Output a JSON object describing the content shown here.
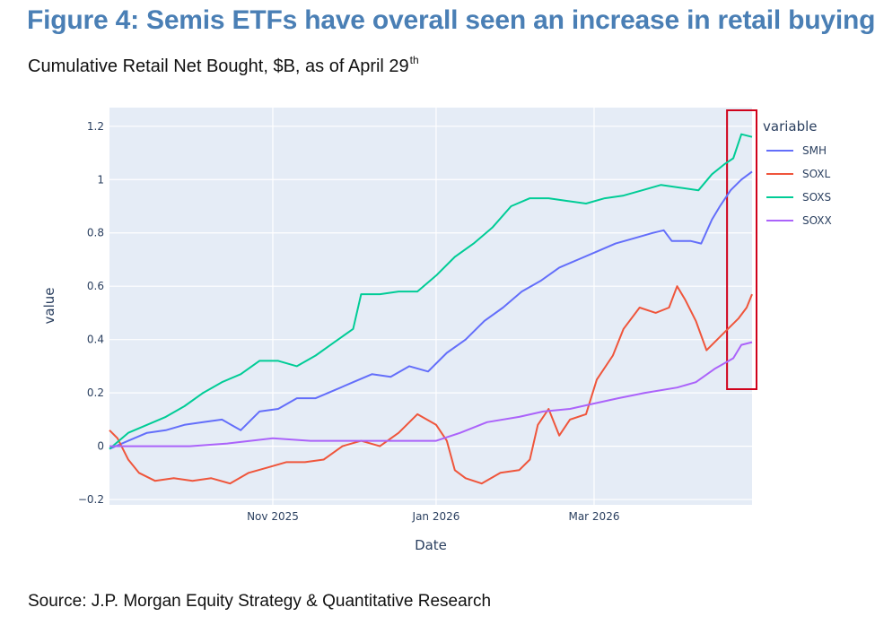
{
  "figure": {
    "title": "Figure 4: Semis ETFs have overall seen an increase in retail buying",
    "subtitle": "Cumulative Retail Net Bought, $B, as of April 29",
    "subtitle_sup": "th",
    "source": "Source: J.P. Morgan Equity Strategy & Quantitative Research"
  },
  "chart_data": {
    "type": "line",
    "xlabel": "Date",
    "ylabel": "value",
    "legend_title": "variable",
    "legend_position": "right",
    "grid": true,
    "x_range": [
      "2025-09-01",
      "2026-04-29"
    ],
    "ylim": [
      -0.22,
      1.27
    ],
    "x_ticks": [
      {
        "date": "2025-11-01",
        "label": "Nov 2025"
      },
      {
        "date": "2026-01-01",
        "label": "Jan 2026"
      },
      {
        "date": "2026-03-01",
        "label": "Mar 2026"
      }
    ],
    "y_ticks": [
      {
        "value": 1.2,
        "label": "1.2"
      },
      {
        "value": 1.0,
        "label": "1"
      },
      {
        "value": 0.8,
        "label": "0.8"
      },
      {
        "value": 0.6,
        "label": "0.6"
      },
      {
        "value": 0.4,
        "label": "0.4"
      },
      {
        "value": 0.2,
        "label": "0.2"
      },
      {
        "value": 0.0,
        "label": "0"
      },
      {
        "value": -0.2,
        "label": "−0.2"
      }
    ],
    "series": [
      {
        "name": "SMH",
        "color": "#636efa",
        "points": [
          [
            "2025-09-01",
            -0.01
          ],
          [
            "2025-09-08",
            0.02
          ],
          [
            "2025-09-15",
            0.05
          ],
          [
            "2025-09-22",
            0.06
          ],
          [
            "2025-09-29",
            0.08
          ],
          [
            "2025-10-06",
            0.09
          ],
          [
            "2025-10-13",
            0.1
          ],
          [
            "2025-10-20",
            0.06
          ],
          [
            "2025-10-27",
            0.13
          ],
          [
            "2025-11-03",
            0.14
          ],
          [
            "2025-11-10",
            0.18
          ],
          [
            "2025-11-17",
            0.18
          ],
          [
            "2025-11-24",
            0.21
          ],
          [
            "2025-12-01",
            0.24
          ],
          [
            "2025-12-08",
            0.27
          ],
          [
            "2025-12-15",
            0.26
          ],
          [
            "2025-12-22",
            0.3
          ],
          [
            "2025-12-29",
            0.28
          ],
          [
            "2026-01-05",
            0.35
          ],
          [
            "2026-01-12",
            0.4
          ],
          [
            "2026-01-19",
            0.47
          ],
          [
            "2026-01-26",
            0.52
          ],
          [
            "2026-02-02",
            0.58
          ],
          [
            "2026-02-09",
            0.62
          ],
          [
            "2026-02-16",
            0.67
          ],
          [
            "2026-02-23",
            0.7
          ],
          [
            "2026-03-02",
            0.73
          ],
          [
            "2026-03-09",
            0.76
          ],
          [
            "2026-03-16",
            0.78
          ],
          [
            "2026-03-23",
            0.8
          ],
          [
            "2026-03-27",
            0.81
          ],
          [
            "2026-03-30",
            0.77
          ],
          [
            "2026-04-06",
            0.77
          ],
          [
            "2026-04-10",
            0.76
          ],
          [
            "2026-04-14",
            0.85
          ],
          [
            "2026-04-17",
            0.9
          ],
          [
            "2026-04-21",
            0.96
          ],
          [
            "2026-04-25",
            1.0
          ],
          [
            "2026-04-29",
            1.03
          ]
        ]
      },
      {
        "name": "SOXL",
        "color": "#ef553b",
        "points": [
          [
            "2025-09-01",
            0.06
          ],
          [
            "2025-09-04",
            0.03
          ],
          [
            "2025-09-08",
            -0.05
          ],
          [
            "2025-09-12",
            -0.1
          ],
          [
            "2025-09-18",
            -0.13
          ],
          [
            "2025-09-25",
            -0.12
          ],
          [
            "2025-10-02",
            -0.13
          ],
          [
            "2025-10-09",
            -0.12
          ],
          [
            "2025-10-16",
            -0.14
          ],
          [
            "2025-10-23",
            -0.1
          ],
          [
            "2025-10-30",
            -0.08
          ],
          [
            "2025-11-06",
            -0.06
          ],
          [
            "2025-11-13",
            -0.06
          ],
          [
            "2025-11-20",
            -0.05
          ],
          [
            "2025-11-27",
            0.0
          ],
          [
            "2025-12-04",
            0.02
          ],
          [
            "2025-12-11",
            0.0
          ],
          [
            "2025-12-18",
            0.05
          ],
          [
            "2025-12-25",
            0.12
          ],
          [
            "2026-01-01",
            0.08
          ],
          [
            "2026-01-05",
            0.02
          ],
          [
            "2026-01-08",
            -0.09
          ],
          [
            "2026-01-12",
            -0.12
          ],
          [
            "2026-01-18",
            -0.14
          ],
          [
            "2026-01-25",
            -0.1
          ],
          [
            "2026-02-01",
            -0.09
          ],
          [
            "2026-02-05",
            -0.05
          ],
          [
            "2026-02-08",
            0.08
          ],
          [
            "2026-02-12",
            0.14
          ],
          [
            "2026-02-16",
            0.04
          ],
          [
            "2026-02-20",
            0.1
          ],
          [
            "2026-02-26",
            0.12
          ],
          [
            "2026-03-02",
            0.25
          ],
          [
            "2026-03-08",
            0.34
          ],
          [
            "2026-03-12",
            0.44
          ],
          [
            "2026-03-18",
            0.52
          ],
          [
            "2026-03-24",
            0.5
          ],
          [
            "2026-03-29",
            0.52
          ],
          [
            "2026-04-01",
            0.6
          ],
          [
            "2026-04-04",
            0.55
          ],
          [
            "2026-04-08",
            0.47
          ],
          [
            "2026-04-12",
            0.36
          ],
          [
            "2026-04-16",
            0.4
          ],
          [
            "2026-04-20",
            0.44
          ],
          [
            "2026-04-24",
            0.48
          ],
          [
            "2026-04-27",
            0.52
          ],
          [
            "2026-04-29",
            0.57
          ]
        ]
      },
      {
        "name": "SOXS",
        "color": "#00cc96",
        "points": [
          [
            "2025-09-01",
            -0.01
          ],
          [
            "2025-09-08",
            0.05
          ],
          [
            "2025-09-15",
            0.08
          ],
          [
            "2025-09-22",
            0.11
          ],
          [
            "2025-09-29",
            0.15
          ],
          [
            "2025-10-06",
            0.2
          ],
          [
            "2025-10-13",
            0.24
          ],
          [
            "2025-10-20",
            0.27
          ],
          [
            "2025-10-27",
            0.32
          ],
          [
            "2025-11-03",
            0.32
          ],
          [
            "2025-11-10",
            0.3
          ],
          [
            "2025-11-17",
            0.34
          ],
          [
            "2025-11-24",
            0.39
          ],
          [
            "2025-12-01",
            0.44
          ],
          [
            "2025-12-04",
            0.57
          ],
          [
            "2025-12-11",
            0.57
          ],
          [
            "2025-12-18",
            0.58
          ],
          [
            "2025-12-25",
            0.58
          ],
          [
            "2026-01-01",
            0.64
          ],
          [
            "2026-01-08",
            0.71
          ],
          [
            "2026-01-15",
            0.76
          ],
          [
            "2026-01-22",
            0.82
          ],
          [
            "2026-01-29",
            0.9
          ],
          [
            "2026-02-05",
            0.93
          ],
          [
            "2026-02-12",
            0.93
          ],
          [
            "2026-02-19",
            0.92
          ],
          [
            "2026-02-26",
            0.91
          ],
          [
            "2026-03-05",
            0.93
          ],
          [
            "2026-03-12",
            0.94
          ],
          [
            "2026-03-19",
            0.96
          ],
          [
            "2026-03-26",
            0.98
          ],
          [
            "2026-04-02",
            0.97
          ],
          [
            "2026-04-09",
            0.96
          ],
          [
            "2026-04-14",
            1.02
          ],
          [
            "2026-04-19",
            1.06
          ],
          [
            "2026-04-22",
            1.08
          ],
          [
            "2026-04-25",
            1.17
          ],
          [
            "2026-04-29",
            1.16
          ]
        ]
      },
      {
        "name": "SOXX",
        "color": "#ab63fa",
        "points": [
          [
            "2025-09-01",
            0.0
          ],
          [
            "2025-09-15",
            0.0
          ],
          [
            "2025-10-01",
            0.0
          ],
          [
            "2025-10-15",
            0.01
          ],
          [
            "2025-11-01",
            0.03
          ],
          [
            "2025-11-15",
            0.02
          ],
          [
            "2025-12-01",
            0.02
          ],
          [
            "2025-12-15",
            0.02
          ],
          [
            "2026-01-01",
            0.02
          ],
          [
            "2026-01-10",
            0.05
          ],
          [
            "2026-01-20",
            0.09
          ],
          [
            "2026-02-01",
            0.11
          ],
          [
            "2026-02-10",
            0.13
          ],
          [
            "2026-02-20",
            0.14
          ],
          [
            "2026-03-01",
            0.16
          ],
          [
            "2026-03-10",
            0.18
          ],
          [
            "2026-03-20",
            0.2
          ],
          [
            "2026-04-01",
            0.22
          ],
          [
            "2026-04-08",
            0.24
          ],
          [
            "2026-04-15",
            0.29
          ],
          [
            "2026-04-22",
            0.33
          ],
          [
            "2026-04-25",
            0.38
          ],
          [
            "2026-04-29",
            0.39
          ]
        ]
      }
    ],
    "highlight": {
      "from": "2026-04-21",
      "to": "2026-04-29",
      "color": "#d0021b"
    }
  }
}
